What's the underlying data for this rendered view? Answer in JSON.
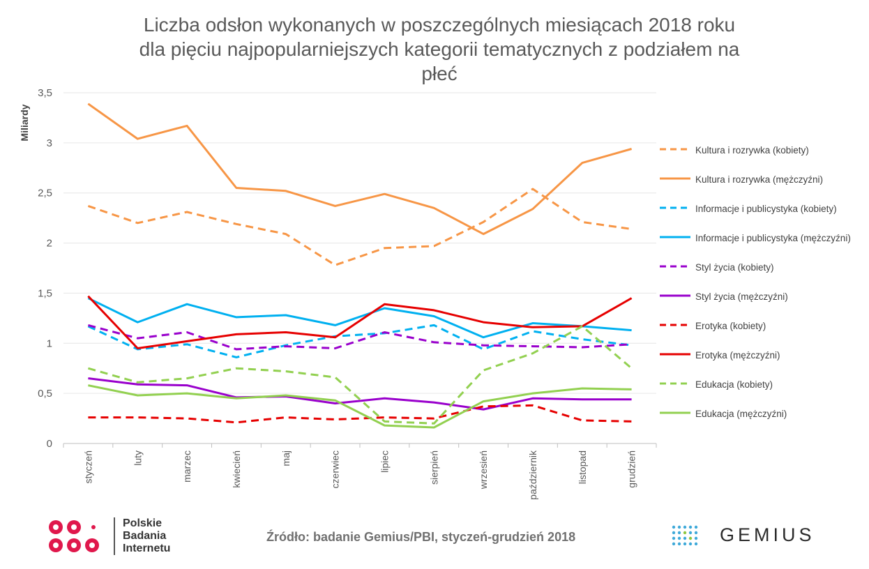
{
  "chart_data": {
    "type": "line",
    "title_lines": [
      "Liczba odsłon wykonanych w poszczególnych miesiącach 2018 roku",
      "dla pięciu najpopularniejszych kategorii tematycznych z podziałem na",
      "płeć"
    ],
    "ylabel": "Miliardy",
    "ylim": [
      0,
      3.5
    ],
    "yticks": [
      "0",
      "0,5",
      "1",
      "1,5",
      "2",
      "2,5",
      "3",
      "3,5"
    ],
    "ytick_values": [
      0,
      0.5,
      1,
      1.5,
      2,
      2.5,
      3,
      3.5
    ],
    "grid": true,
    "legend_position": "right",
    "categories": [
      "styczeń",
      "luty",
      "marzec",
      "kwiecień",
      "maj",
      "czerwiec",
      "lipiec",
      "sierpień",
      "wrzesień",
      "październik",
      "listopad",
      "grudzień"
    ],
    "series": [
      {
        "name": "Kultura i rozrywka (kobiety)",
        "color": "#F79646",
        "dashed": true,
        "values": [
          2.37,
          2.2,
          2.31,
          2.19,
          2.09,
          1.78,
          1.95,
          1.97,
          2.21,
          2.54,
          2.21,
          2.14
        ]
      },
      {
        "name": "Kultura i rozrywka (mężczyźni)",
        "color": "#F79646",
        "dashed": false,
        "values": [
          3.39,
          3.04,
          3.17,
          2.55,
          2.52,
          2.37,
          2.49,
          2.35,
          2.09,
          2.34,
          2.8,
          2.94
        ]
      },
      {
        "name": "Informacje i publicystyka (kobiety)",
        "color": "#00B0F0",
        "dashed": true,
        "values": [
          1.17,
          0.94,
          0.99,
          0.86,
          0.98,
          1.07,
          1.1,
          1.18,
          0.94,
          1.12,
          1.04,
          0.98
        ]
      },
      {
        "name": "Informacje i publicystyka (mężczyźni)",
        "color": "#00B0F0",
        "dashed": false,
        "values": [
          1.45,
          1.21,
          1.39,
          1.26,
          1.28,
          1.18,
          1.35,
          1.27,
          1.06,
          1.2,
          1.17,
          1.13
        ]
      },
      {
        "name": "Styl życia (kobiety)",
        "color": "#9900CC",
        "dashed": true,
        "values": [
          1.18,
          1.05,
          1.11,
          0.94,
          0.97,
          0.95,
          1.11,
          1.01,
          0.98,
          0.97,
          0.96,
          0.99
        ]
      },
      {
        "name": "Styl życia (mężczyźni)",
        "color": "#9900CC",
        "dashed": false,
        "values": [
          0.65,
          0.59,
          0.58,
          0.46,
          0.47,
          0.4,
          0.45,
          0.41,
          0.34,
          0.45,
          0.44,
          0.44
        ]
      },
      {
        "name": "Erotyka (kobiety)",
        "color": "#E60000",
        "dashed": true,
        "values": [
          0.26,
          0.26,
          0.25,
          0.21,
          0.26,
          0.24,
          0.26,
          0.25,
          0.37,
          0.38,
          0.23,
          0.22
        ]
      },
      {
        "name": "Erotyka (mężczyźni)",
        "color": "#E60000",
        "dashed": false,
        "values": [
          1.47,
          0.95,
          1.02,
          1.09,
          1.11,
          1.06,
          1.39,
          1.33,
          1.21,
          1.16,
          1.17,
          1.45
        ]
      },
      {
        "name": "Edukacja (kobiety)",
        "color": "#92D050",
        "dashed": true,
        "values": [
          0.75,
          0.61,
          0.65,
          0.75,
          0.72,
          0.66,
          0.22,
          0.2,
          0.73,
          0.9,
          1.17,
          0.75
        ]
      },
      {
        "name": "Edukacja (mężczyźni)",
        "color": "#92D050",
        "dashed": false,
        "values": [
          0.58,
          0.48,
          0.5,
          0.45,
          0.48,
          0.43,
          0.18,
          0.16,
          0.42,
          0.5,
          0.55,
          0.54
        ]
      }
    ]
  },
  "footer": {
    "source": "Źródło: badanie Gemius/PBI, styczeń-grudzień 2018",
    "pbi_lines": [
      "Polskie",
      "Badania",
      "Internetu"
    ],
    "gemius": "GEMIUS"
  },
  "colors": {
    "pbi_brand": "#E0184C",
    "gemius_blue": "#3EA9D9",
    "gemius_green": "#8DC63F"
  }
}
